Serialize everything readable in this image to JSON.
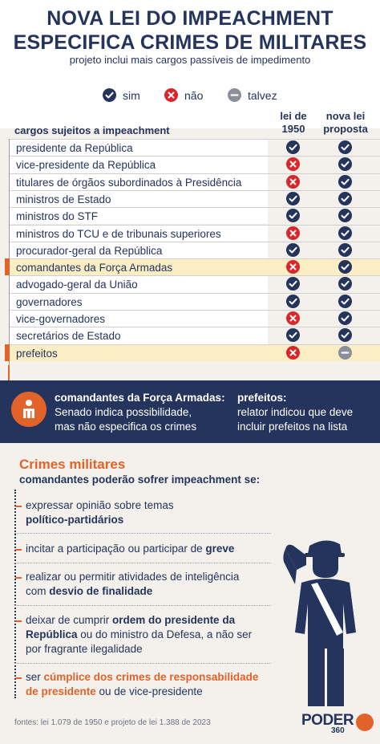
{
  "header": {
    "title_line1": "NOVA LEI DO IMPEACHMENT",
    "title_line2": "ESPECIFICA CRIMES DE MILITARES",
    "subtitle": "projeto inclui mais cargos passíveis de impedimento"
  },
  "legend": {
    "yes": "sim",
    "no": "não",
    "maybe": "talvez"
  },
  "table": {
    "cargos_header": "cargos sujeitos a impeachment",
    "col1_line1": "lei de",
    "col1_line2": "1950",
    "col2_line1": "nova lei",
    "col2_line2": "proposta",
    "rows": [
      {
        "name": "presidente da República",
        "lei1950": "sim",
        "proposta": "sim",
        "highlight": false
      },
      {
        "name": "vice-presidente da República",
        "lei1950": "não",
        "proposta": "sim",
        "highlight": false
      },
      {
        "name": "titulares de órgãos subordinados à Presidência",
        "lei1950": "não",
        "proposta": "sim",
        "highlight": false
      },
      {
        "name": "ministros de Estado",
        "lei1950": "sim",
        "proposta": "sim",
        "highlight": false
      },
      {
        "name": "ministros do STF",
        "lei1950": "sim",
        "proposta": "sim",
        "highlight": false
      },
      {
        "name": "ministros do TCU e de tribunais superiores",
        "lei1950": "não",
        "proposta": "sim",
        "highlight": false
      },
      {
        "name": "procurador-geral da República",
        "lei1950": "sim",
        "proposta": "sim",
        "highlight": false
      },
      {
        "name": "comandantes da Força Armadas",
        "lei1950": "não",
        "proposta": "sim",
        "highlight": true
      },
      {
        "name": "advogado-geral da União",
        "lei1950": "sim",
        "proposta": "sim",
        "highlight": false
      },
      {
        "name": "governadores",
        "lei1950": "sim",
        "proposta": "sim",
        "highlight": false
      },
      {
        "name": "vice-governadores",
        "lei1950": "não",
        "proposta": "sim",
        "highlight": false
      },
      {
        "name": "secretários de Estado",
        "lei1950": "sim",
        "proposta": "sim",
        "highlight": false
      },
      {
        "name": "prefeitos",
        "lei1950": "não",
        "proposta": "talvez",
        "highlight": true
      }
    ]
  },
  "note": {
    "left_title": "comandantes da Força Armadas:",
    "left_line1": "Senado indica possibilidade,",
    "left_line2": "mas não especifica os crimes",
    "right_title": "prefeitos:",
    "right_line1": "relator indicou que deve",
    "right_line2": "incluir prefeitos na lista"
  },
  "crimes": {
    "title": "Crimes militares",
    "subtitle": "comandantes poderão sofrer impeachment se:",
    "items": [
      {
        "p1": "expressar opinião sobre temas",
        "p2": "político-partidários"
      },
      {
        "p1": "incitar a participação ou participar de ",
        "p2": "greve"
      },
      {
        "p1": "realizar ou permitir atividades de inteligência",
        "p2a": "com ",
        "p2": "desvio de finalidade"
      },
      {
        "p1a": "deixar de cumprir ",
        "p1": "ordem do presidente da",
        "p2": "República",
        "p2b": " ou do ministro da Defesa, a não ser",
        "p3": "por fragrante ilegalidade"
      },
      {
        "p1a": "ser ",
        "p1": "cúmplice dos crimes de responsabilidade",
        "p2": "de presidente",
        "p2b": " ou de vice-presidente"
      }
    ]
  },
  "footer": {
    "source": "fontes: lei 1.079 de 1950 e projeto de lei 1.388 de 2023",
    "logo": "PODER",
    "logo_number": "360"
  },
  "colors": {
    "navy": "#24345c",
    "orange": "#e2632a",
    "red": "#d9262b",
    "gray": "#8a8f99",
    "highlight": "#fbeec4"
  },
  "icons": {
    "yes": "check-circle-icon",
    "no": "x-circle-icon",
    "maybe": "minus-circle-icon",
    "note": "person-icon",
    "soldier": "saluting-soldier-icon"
  }
}
